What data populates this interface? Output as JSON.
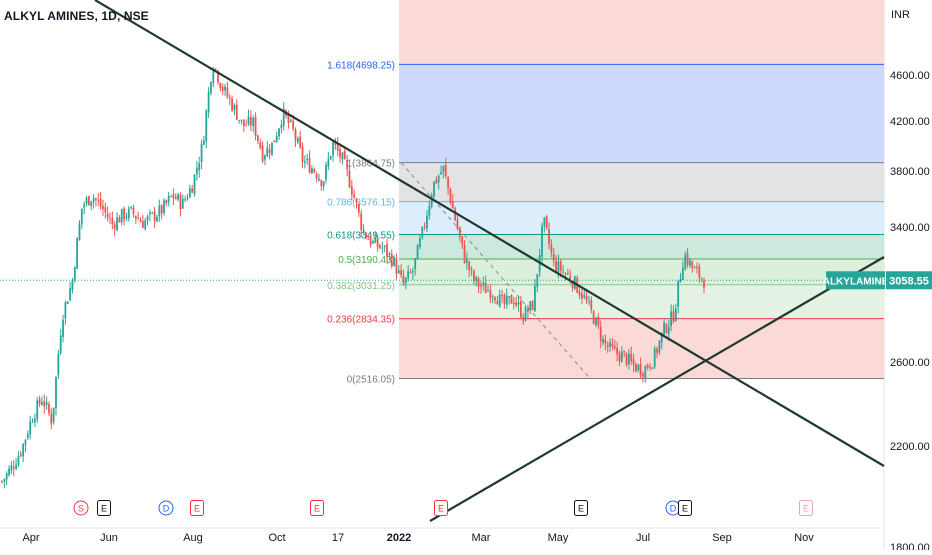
{
  "symbol_title": "ALKYL AMINES, 1D, NSE",
  "currency": "INR",
  "last_price_tag": {
    "symbol": "ALKYLAMINE",
    "value": "3058.55",
    "color": "#26a69a"
  },
  "colors": {
    "up": "#26a69a",
    "down": "#ef5350",
    "trendline": "#1e3a2f",
    "axis_text": "#131722"
  },
  "chart_data": {
    "type": "candlestick",
    "title": "ALKYL AMINES, 1D, NSE",
    "ylabel": "INR",
    "x_ticks": [
      "Apr",
      "Jun",
      "Aug",
      "Oct",
      "17",
      "2022",
      "Mar",
      "May",
      "Jul",
      "Sep",
      "Nov"
    ],
    "y_ticks": [
      "4600.00",
      "4200.00",
      "3800.00",
      "3400.00",
      "2600.00",
      "2200.00",
      "1800.00"
    ],
    "y_scale": "log",
    "last_price": 3058.55,
    "fib_retracement": {
      "anchor_high": 3864.75,
      "anchor_low": 2516.05,
      "levels": [
        {
          "ratio": "1.618",
          "label": "1.618(4698.25)",
          "value": 4698.25,
          "color": "#2962ff",
          "zone_fill": "#cfd9ff"
        },
        {
          "ratio": "1",
          "label": "1(3864.75)",
          "value": 3864.75,
          "color": "#787b86",
          "zone_fill": "#e3e3e3"
        },
        {
          "ratio": "0.786",
          "label": "0.786(3576.15)",
          "value": 3576.15,
          "color": "#64b5f6",
          "zone_fill": "#ddedfb"
        },
        {
          "ratio": "0.618",
          "label": "0.618(3349.55)",
          "value": 3349.55,
          "color": "#089981",
          "zone_fill": "#cce9dd"
        },
        {
          "ratio": "0.5",
          "label": "0.5(3190.40)",
          "value": 3190.4,
          "color": "#4caf50",
          "zone_fill": "#dcefdc"
        },
        {
          "ratio": "0.382",
          "label": "0.382(3031.25)",
          "value": 3031.25,
          "color": "#81c784",
          "zone_fill": "#e4f3e4"
        },
        {
          "ratio": "0.236",
          "label": "0.236(2834.35)",
          "value": 2834.35,
          "color": "#f23645",
          "zone_fill": "#fbd9d7"
        },
        {
          "ratio": "0",
          "label": "0(2516.05)",
          "value": 2516.05,
          "color": "#787b86",
          "zone_fill": "#fbd9d7"
        }
      ]
    },
    "event_markers": [
      {
        "kind": "S",
        "color": "#f23645"
      },
      {
        "kind": "E",
        "color": "#131722"
      },
      {
        "kind": "D",
        "color": "#2962ff"
      },
      {
        "kind": "E",
        "color": "#f23645"
      },
      {
        "kind": "E",
        "color": "#f23645"
      },
      {
        "kind": "E",
        "color": "#f23645"
      },
      {
        "kind": "E",
        "color": "#131722"
      },
      {
        "kind": "D",
        "color": "#2962ff"
      },
      {
        "kind": "E",
        "color": "#131722"
      },
      {
        "kind": "E",
        "color": "#f4a1b1"
      }
    ],
    "price_path": [
      2050,
      2110,
      2190,
      2330,
      2420,
      2310,
      2850,
      3050,
      3550,
      3620,
      3530,
      3420,
      3480,
      3500,
      3430,
      3470,
      3520,
      3620,
      3560,
      3700,
      4000,
      4720,
      4480,
      4330,
      4160,
      4190,
      3930,
      4010,
      4260,
      4120,
      3880,
      3820,
      3720,
      4010,
      3880,
      3640,
      3370,
      3290,
      3260,
      3180,
      3030,
      3120,
      3380,
      3700,
      3820,
      3510,
      3220,
      3060,
      3010,
      2990,
      2910,
      2950,
      2850,
      2920,
      3440,
      3160,
      3110,
      3050,
      2960,
      2840,
      2700,
      2650,
      2630,
      2580,
      2560,
      2620,
      2770,
      2860,
      3220,
      3120,
      3060
    ]
  }
}
